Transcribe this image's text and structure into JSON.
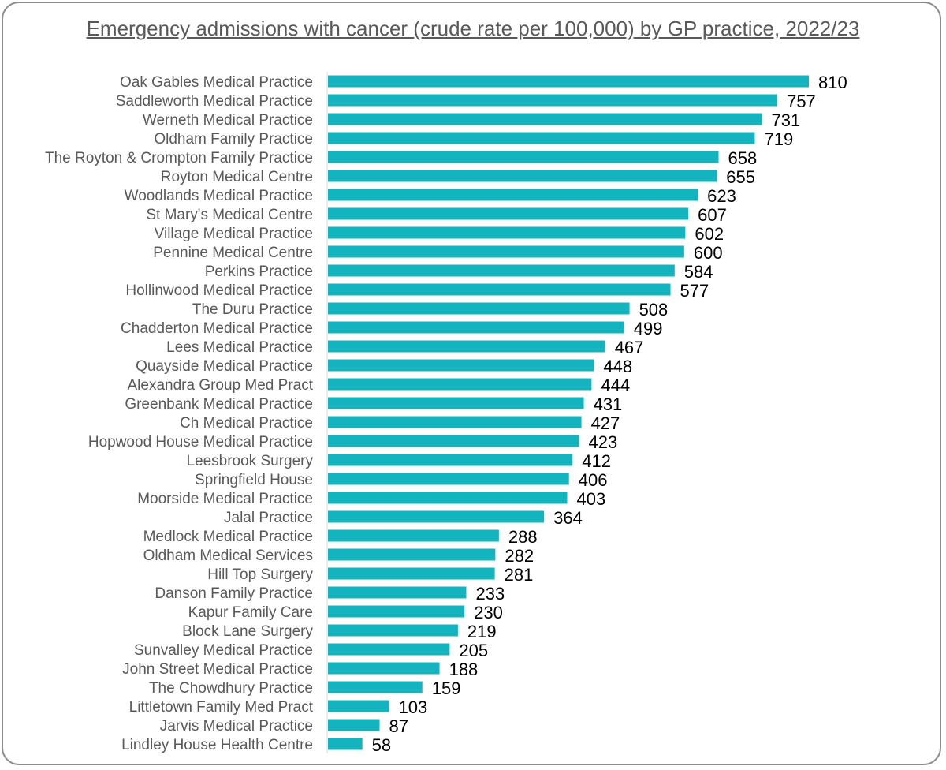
{
  "chart_data": {
    "type": "bar",
    "orientation": "horizontal",
    "title": "Emergency admissions with cancer (crude rate per 100,000) by GP practice, 2022/23",
    "xlabel": "",
    "ylabel": "",
    "xlim": [
      0,
      810
    ],
    "grid": false,
    "legend": "none",
    "bar_color": "#14b4be",
    "categories": [
      "Oak Gables Medical Practice",
      "Saddleworth Medical Practice",
      "Werneth Medical Practice",
      "Oldham Family Practice",
      "The Royton & Crompton Family Practice",
      "Royton Medical Centre",
      "Woodlands Medical Practice",
      "St Mary's Medical Centre",
      "Village Medical Practice",
      "Pennine Medical Centre",
      "Perkins Practice",
      "Hollinwood Medical Practice",
      "The Duru Practice",
      "Chadderton Medical Practice",
      "Lees Medical Practice",
      "Quayside Medical Practice",
      "Alexandra Group Med Pract",
      "Greenbank Medical Practice",
      "Ch Medical Practice",
      "Hopwood House Medical Practice",
      "Leesbrook Surgery",
      "Springfield House",
      "Moorside Medical Practice",
      "Jalal Practice",
      "Medlock Medical Practice",
      "Oldham Medical Services",
      "Hill Top Surgery",
      "Danson Family Practice",
      "Kapur Family Care",
      "Block Lane Surgery",
      "Sunvalley Medical Practice",
      "John Street Medical Practice",
      "The Chowdhury Practice",
      "Littletown Family Med Pract",
      "Jarvis Medical Practice",
      "Lindley House Health Centre"
    ],
    "values": [
      810,
      757,
      731,
      719,
      658,
      655,
      623,
      607,
      602,
      600,
      584,
      577,
      508,
      499,
      467,
      448,
      444,
      431,
      427,
      423,
      412,
      406,
      403,
      364,
      288,
      282,
      281,
      233,
      230,
      219,
      205,
      188,
      159,
      103,
      87,
      58
    ]
  }
}
